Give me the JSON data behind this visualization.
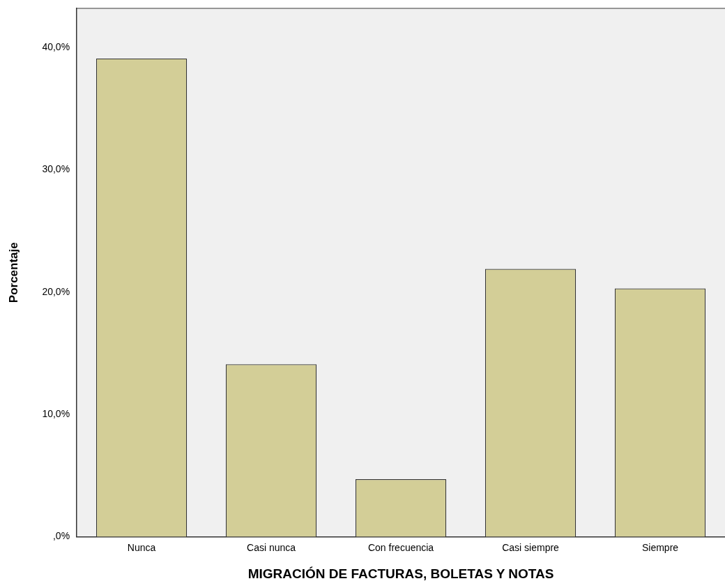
{
  "chart_data": {
    "type": "bar",
    "xlabel": "MIGRACIÓN DE FACTURAS, BOLETAS Y NOTAS",
    "ylabel": "Porcentaje",
    "categories": [
      "Nunca",
      "Casi nunca",
      "Con frecuencia",
      "Casi siempre",
      "Siempre"
    ],
    "values": [
      39.1,
      14.1,
      4.7,
      21.9,
      20.3
    ],
    "color": "#d3ce97",
    "ylim": [
      0,
      43.2
    ],
    "yticks": [
      {
        "value": 0,
        "label": ",0%"
      },
      {
        "value": 10,
        "label": "10,0%"
      },
      {
        "value": 20,
        "label": "20,0%"
      },
      {
        "value": 30,
        "label": "30,0%"
      },
      {
        "value": 40,
        "label": "40,0%"
      }
    ],
    "grid": false,
    "legend": false
  }
}
